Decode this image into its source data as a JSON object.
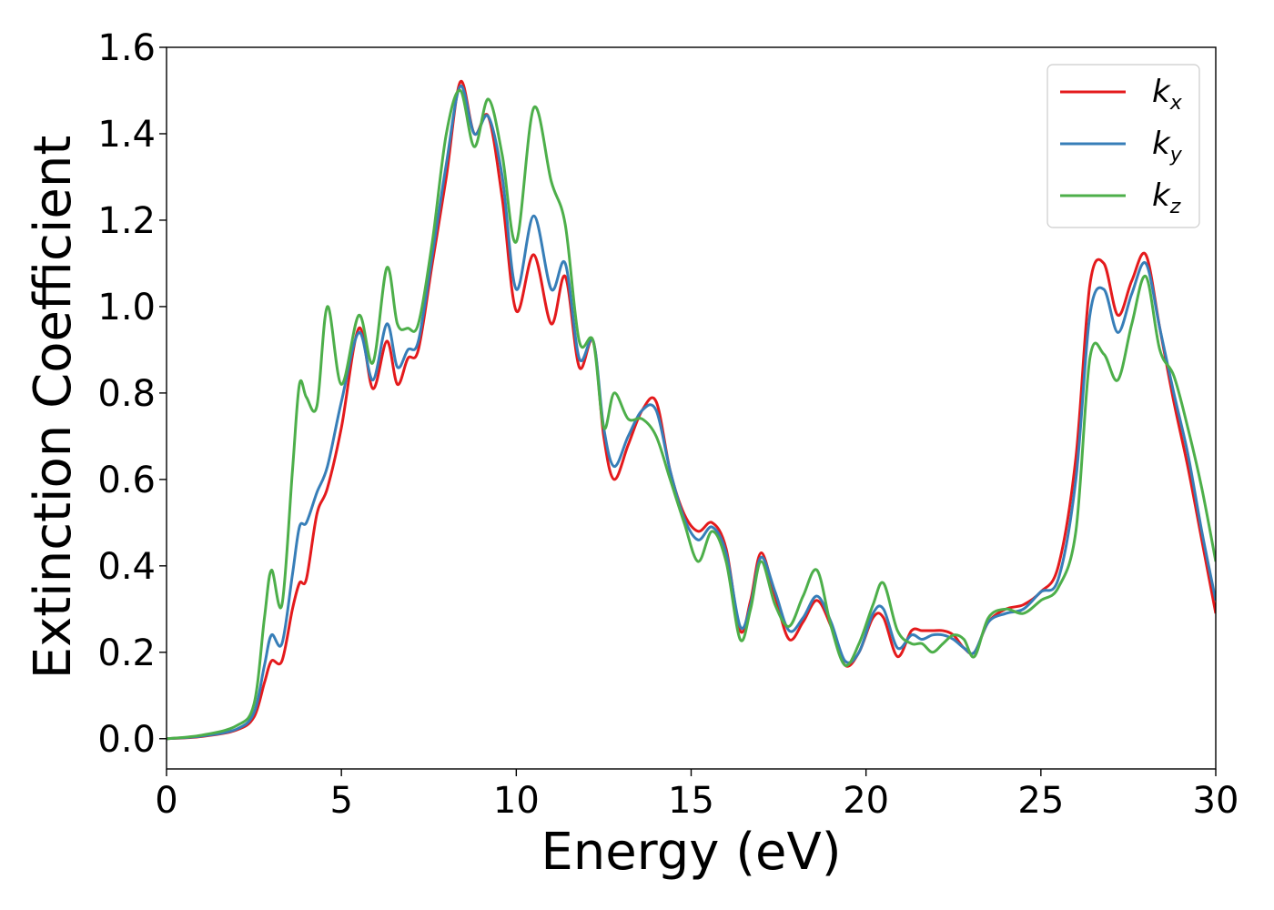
{
  "chart_data": {
    "type": "line",
    "title": "",
    "xlabel": "Energy (eV)",
    "ylabel": "Extinction Coefficient",
    "xlim": [
      0,
      30
    ],
    "ylim": [
      -0.07,
      1.6
    ],
    "xticks": [
      0,
      5,
      10,
      15,
      20,
      25,
      30
    ],
    "yticks": [
      0.0,
      0.2,
      0.4,
      0.6,
      0.8,
      1.0,
      1.2,
      1.4,
      1.6
    ],
    "xtick_labels": [
      "0",
      "5",
      "10",
      "15",
      "20",
      "25",
      "30"
    ],
    "ytick_labels": [
      "0.0",
      "0.2",
      "0.4",
      "0.6",
      "0.8",
      "1.0",
      "1.2",
      "1.4",
      "1.6"
    ],
    "grid": false,
    "legend_position": "top-right",
    "series": [
      {
        "name": "k_x",
        "label_main": "k",
        "label_sub": "x",
        "color": "#e41a1c",
        "x": [
          0,
          1,
          2,
          2.5,
          2.8,
          3.0,
          3.3,
          3.6,
          3.8,
          4.0,
          4.3,
          4.6,
          5.0,
          5.5,
          5.9,
          6.3,
          6.6,
          6.9,
          7.2,
          7.6,
          8.0,
          8.4,
          8.8,
          9.2,
          9.6,
          10.0,
          10.5,
          11.0,
          11.4,
          11.8,
          12.2,
          12.5,
          12.8,
          13.2,
          13.6,
          14.0,
          14.4,
          14.8,
          15.2,
          15.6,
          16.0,
          16.4,
          16.7,
          17.0,
          17.4,
          17.8,
          18.2,
          18.6,
          19.0,
          19.4,
          19.8,
          20.2,
          20.5,
          20.9,
          21.3,
          21.6,
          21.9,
          22.2,
          22.5,
          22.8,
          23.1,
          23.5,
          24.0,
          24.5,
          25.0,
          25.5,
          26.0,
          26.4,
          26.8,
          27.2,
          27.6,
          28.0,
          28.4,
          28.8,
          29.2,
          29.6,
          30.0
        ],
        "values": [
          0,
          0.005,
          0.02,
          0.05,
          0.13,
          0.18,
          0.18,
          0.3,
          0.36,
          0.37,
          0.52,
          0.58,
          0.72,
          0.95,
          0.81,
          0.92,
          0.82,
          0.88,
          0.9,
          1.1,
          1.3,
          1.52,
          1.4,
          1.44,
          1.25,
          0.99,
          1.12,
          0.96,
          1.07,
          0.86,
          0.92,
          0.7,
          0.6,
          0.68,
          0.76,
          0.78,
          0.62,
          0.52,
          0.48,
          0.5,
          0.44,
          0.25,
          0.32,
          0.43,
          0.33,
          0.23,
          0.27,
          0.32,
          0.26,
          0.17,
          0.2,
          0.28,
          0.28,
          0.19,
          0.25,
          0.25,
          0.25,
          0.25,
          0.24,
          0.21,
          0.2,
          0.27,
          0.3,
          0.31,
          0.34,
          0.4,
          0.65,
          1.05,
          1.1,
          0.98,
          1.06,
          1.12,
          0.95,
          0.78,
          0.63,
          0.46,
          0.29
        ]
      },
      {
        "name": "k_y",
        "label_main": "k",
        "label_sub": "y",
        "color": "#377eb8",
        "x": [
          0,
          1,
          2,
          2.5,
          2.8,
          3.0,
          3.3,
          3.6,
          3.8,
          4.0,
          4.3,
          4.6,
          5.0,
          5.5,
          5.9,
          6.3,
          6.6,
          6.9,
          7.2,
          7.6,
          8.0,
          8.4,
          8.8,
          9.2,
          9.6,
          10.0,
          10.5,
          11.0,
          11.4,
          11.8,
          12.2,
          12.5,
          12.8,
          13.2,
          13.6,
          14.0,
          14.4,
          14.8,
          15.2,
          15.6,
          16.0,
          16.4,
          16.7,
          17.0,
          17.4,
          17.8,
          18.2,
          18.6,
          19.0,
          19.4,
          19.8,
          20.2,
          20.5,
          20.9,
          21.3,
          21.6,
          21.9,
          22.2,
          22.5,
          22.8,
          23.1,
          23.5,
          24.0,
          24.5,
          25.0,
          25.5,
          26.0,
          26.4,
          26.8,
          27.2,
          27.6,
          28.0,
          28.4,
          28.8,
          29.2,
          29.6,
          30.0
        ],
        "values": [
          0,
          0.006,
          0.022,
          0.06,
          0.17,
          0.24,
          0.22,
          0.38,
          0.49,
          0.5,
          0.57,
          0.63,
          0.78,
          0.94,
          0.83,
          0.96,
          0.86,
          0.9,
          0.92,
          1.12,
          1.33,
          1.51,
          1.4,
          1.44,
          1.3,
          1.04,
          1.21,
          1.04,
          1.1,
          0.88,
          0.92,
          0.72,
          0.63,
          0.7,
          0.76,
          0.76,
          0.62,
          0.51,
          0.46,
          0.49,
          0.43,
          0.26,
          0.31,
          0.42,
          0.34,
          0.25,
          0.28,
          0.33,
          0.27,
          0.18,
          0.2,
          0.29,
          0.3,
          0.21,
          0.24,
          0.23,
          0.24,
          0.24,
          0.23,
          0.21,
          0.2,
          0.27,
          0.29,
          0.3,
          0.34,
          0.37,
          0.6,
          0.98,
          1.04,
          0.94,
          1.03,
          1.1,
          0.95,
          0.8,
          0.66,
          0.48,
          0.32
        ]
      },
      {
        "name": "k_z",
        "label_main": "k",
        "label_sub": "z",
        "color": "#4daf4a",
        "x": [
          0,
          1,
          2,
          2.5,
          2.8,
          3.0,
          3.3,
          3.6,
          3.8,
          4.0,
          4.3,
          4.6,
          5.0,
          5.5,
          5.9,
          6.3,
          6.6,
          6.9,
          7.2,
          7.6,
          8.0,
          8.4,
          8.8,
          9.2,
          9.6,
          10.0,
          10.5,
          11.0,
          11.4,
          11.8,
          12.2,
          12.5,
          12.8,
          13.2,
          13.6,
          14.0,
          14.4,
          14.8,
          15.2,
          15.6,
          16.0,
          16.4,
          16.7,
          17.0,
          17.4,
          17.8,
          18.2,
          18.6,
          19.0,
          19.4,
          19.8,
          20.2,
          20.5,
          20.9,
          21.3,
          21.6,
          21.9,
          22.2,
          22.5,
          22.8,
          23.1,
          23.5,
          24.0,
          24.5,
          25.0,
          25.5,
          26.0,
          26.4,
          26.8,
          27.2,
          27.6,
          28.0,
          28.4,
          28.8,
          29.2,
          29.6,
          30.0
        ],
        "values": [
          0,
          0.008,
          0.03,
          0.08,
          0.28,
          0.39,
          0.31,
          0.62,
          0.82,
          0.79,
          0.77,
          1.0,
          0.82,
          0.98,
          0.87,
          1.09,
          0.96,
          0.95,
          0.96,
          1.15,
          1.4,
          1.5,
          1.37,
          1.48,
          1.35,
          1.15,
          1.46,
          1.29,
          1.19,
          0.92,
          0.92,
          0.72,
          0.8,
          0.74,
          0.74,
          0.7,
          0.6,
          0.5,
          0.41,
          0.48,
          0.41,
          0.23,
          0.3,
          0.41,
          0.31,
          0.26,
          0.33,
          0.39,
          0.26,
          0.17,
          0.22,
          0.31,
          0.36,
          0.25,
          0.22,
          0.22,
          0.2,
          0.22,
          0.24,
          0.23,
          0.19,
          0.28,
          0.3,
          0.29,
          0.32,
          0.35,
          0.48,
          0.88,
          0.89,
          0.83,
          0.96,
          1.07,
          0.9,
          0.84,
          0.72,
          0.58,
          0.41
        ]
      }
    ]
  }
}
